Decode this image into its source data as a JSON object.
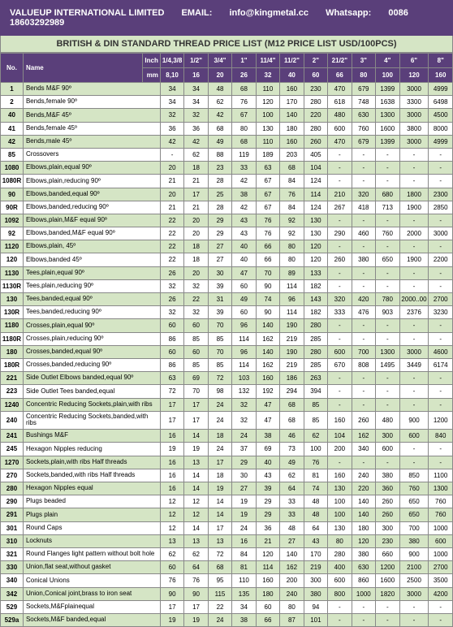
{
  "company": "VALUEUP INTERNATIONAL LIMITED",
  "email_label": "EMAIL:",
  "email": "info@kingmetal.cc",
  "whatsapp_label": "Whatsapp:",
  "whatsapp": "0086 18603292989",
  "title": "BRITISH & DIN STANDARD THREAD PRICE LIST (M12 PRICE LIST USD/100PCS)",
  "head_no": "No.",
  "head_name": "Name",
  "unit_top": "Inch",
  "unit_bottom": "mm",
  "sizes_inch": [
    "1/4,3/8",
    "1/2\"",
    "3/4\"",
    "1\"",
    "11/4\"",
    "11/2\"",
    "2\"",
    "21/2\"",
    "3\"",
    "4\"",
    "6\"",
    "8\""
  ],
  "sizes_mm": [
    "8,10",
    "16",
    "20",
    "26",
    "32",
    "40",
    "60",
    "66",
    "80",
    "100",
    "120",
    "160"
  ],
  "rows": [
    {
      "no": "1",
      "name": "Bends M&F 90º",
      "v": [
        "34",
        "34",
        "48",
        "68",
        "110",
        "160",
        "230",
        "470",
        "679",
        "1399",
        "3000",
        "4999"
      ]
    },
    {
      "no": "2",
      "name": "Bends,female 90º",
      "v": [
        "34",
        "34",
        "62",
        "76",
        "120",
        "170",
        "280",
        "618",
        "748",
        "1638",
        "3300",
        "6498"
      ]
    },
    {
      "no": "40",
      "name": "Bends,M&F 45º",
      "v": [
        "32",
        "32",
        "42",
        "67",
        "100",
        "140",
        "220",
        "480",
        "630",
        "1300",
        "3000",
        "4500"
      ]
    },
    {
      "no": "41",
      "name": "Bends,female 45º",
      "v": [
        "36",
        "36",
        "68",
        "80",
        "130",
        "180",
        "280",
        "600",
        "760",
        "1600",
        "3800",
        "8000"
      ]
    },
    {
      "no": "42",
      "name": "Bends,male 45º",
      "v": [
        "42",
        "42",
        "49",
        "68",
        "110",
        "160",
        "260",
        "470",
        "679",
        "1399",
        "3000",
        "4999"
      ]
    },
    {
      "no": "85",
      "name": "Crossovers",
      "v": [
        "-",
        "62",
        "88",
        "119",
        "189",
        "203",
        "405",
        "-",
        "-",
        "-",
        "-",
        "-"
      ]
    },
    {
      "no": "1080",
      "name": "Elbows,plain,equal 90º",
      "v": [
        "20",
        "18",
        "23",
        "33",
        "63",
        "68",
        "104",
        "-",
        "-",
        "-",
        "-",
        "-"
      ]
    },
    {
      "no": "1080R",
      "name": "Elbows,plain,reducing 90º",
      "v": [
        "21",
        "21",
        "28",
        "42",
        "67",
        "84",
        "124",
        "-",
        "-",
        "-",
        "-",
        "-"
      ]
    },
    {
      "no": "90",
      "name": "Elbows,banded,equal 90º",
      "v": [
        "20",
        "17",
        "25",
        "38",
        "67",
        "76",
        "114",
        "210",
        "320",
        "680",
        "1800",
        "2300"
      ]
    },
    {
      "no": "90R",
      "name": "Elbows,banded,reducing 90º",
      "v": [
        "21",
        "21",
        "28",
        "42",
        "67",
        "84",
        "124",
        "267",
        "418",
        "713",
        "1900",
        "2850"
      ]
    },
    {
      "no": "1092",
      "name": "Elbows,plain,M&F equal 90º",
      "v": [
        "22",
        "20",
        "29",
        "43",
        "76",
        "92",
        "130",
        "-",
        "-",
        "-",
        "-",
        "-"
      ]
    },
    {
      "no": "92",
      "name": "Elbows,banded,M&F equal 90º",
      "v": [
        "22",
        "20",
        "29",
        "43",
        "76",
        "92",
        "130",
        "290",
        "460",
        "760",
        "2000",
        "3000"
      ]
    },
    {
      "no": "1120",
      "name": "Elbows,plain, 45º",
      "v": [
        "22",
        "18",
        "27",
        "40",
        "66",
        "80",
        "120",
        "-",
        "-",
        "-",
        "-",
        "-"
      ]
    },
    {
      "no": "120",
      "name": "Elbows,banded 45º",
      "v": [
        "22",
        "18",
        "27",
        "40",
        "66",
        "80",
        "120",
        "260",
        "380",
        "650",
        "1900",
        "2200"
      ]
    },
    {
      "no": "1130",
      "name": "Tees,plain,equal 90º",
      "v": [
        "26",
        "20",
        "30",
        "47",
        "70",
        "89",
        "133",
        "-",
        "-",
        "-",
        "-",
        "-"
      ]
    },
    {
      "no": "1130R",
      "name": "Tees,plain,reducing 90º",
      "v": [
        "32",
        "32",
        "39",
        "60",
        "90",
        "114",
        "182",
        "-",
        "-",
        "-",
        "-",
        "-"
      ]
    },
    {
      "no": "130",
      "name": "Tees,banded,equal 90º",
      "v": [
        "26",
        "22",
        "31",
        "49",
        "74",
        "96",
        "143",
        "320",
        "420",
        "780",
        "2000..00",
        "2700"
      ]
    },
    {
      "no": "130R",
      "name": "Tees,banded,reducing 90º",
      "v": [
        "32",
        "32",
        "39",
        "60",
        "90",
        "114",
        "182",
        "333",
        "476",
        "903",
        "2376",
        "3230"
      ]
    },
    {
      "no": "1180",
      "name": "Crosses,plain,equal 90º",
      "v": [
        "60",
        "60",
        "70",
        "96",
        "140",
        "190",
        "280",
        "-",
        "-",
        "-",
        "-",
        "-"
      ]
    },
    {
      "no": "1180R",
      "name": "Crosses,plain,reducing 90º",
      "v": [
        "86",
        "85",
        "85",
        "114",
        "162",
        "219",
        "285",
        "-",
        "-",
        "-",
        "-",
        "-"
      ]
    },
    {
      "no": "180",
      "name": "Crosses,banded,equal 90º",
      "v": [
        "60",
        "60",
        "70",
        "96",
        "140",
        "190",
        "280",
        "600",
        "700",
        "1300",
        "3000",
        "4600"
      ]
    },
    {
      "no": "180R",
      "name": "Crosses,banded,reducing 90º",
      "v": [
        "86",
        "85",
        "85",
        "114",
        "162",
        "219",
        "285",
        "670",
        "808",
        "1495",
        "3449",
        "6174"
      ]
    },
    {
      "no": "221",
      "name": "Side Outlet Elbows banded,equal 90º",
      "v": [
        "63",
        "69",
        "72",
        "103",
        "160",
        "186",
        "263",
        "-",
        "-",
        "-",
        "-",
        "-"
      ]
    },
    {
      "no": "223",
      "name": "Side Outlet Tees banded,equal",
      "v": [
        "72",
        "70",
        "98",
        "132",
        "192",
        "294",
        "394",
        "-",
        "-",
        "-",
        "-",
        "-"
      ]
    },
    {
      "no": "1240",
      "name": "Concentric Reducing Sockets,plain,with ribs",
      "v": [
        "17",
        "17",
        "24",
        "32",
        "47",
        "68",
        "85",
        "-",
        "-",
        "-",
        "-",
        "-"
      ]
    },
    {
      "no": "240",
      "name": "Concentric Reducing Sockets,banded,with ribs",
      "v": [
        "17",
        "17",
        "24",
        "32",
        "47",
        "68",
        "85",
        "160",
        "260",
        "480",
        "900",
        "1200"
      ]
    },
    {
      "no": "241",
      "name": "Bushings M&F",
      "v": [
        "16",
        "14",
        "18",
        "24",
        "38",
        "46",
        "62",
        "104",
        "162",
        "300",
        "600",
        "840"
      ]
    },
    {
      "no": "245",
      "name": "Hexagon Nipples reducing",
      "v": [
        "19",
        "19",
        "24",
        "37",
        "69",
        "73",
        "100",
        "200",
        "340",
        "600",
        "-",
        "-"
      ]
    },
    {
      "no": "1270",
      "name": "Sockets,plain,with ribs Half threads",
      "v": [
        "16",
        "13",
        "17",
        "29",
        "40",
        "49",
        "76",
        "-",
        "-",
        "-",
        "-",
        "-"
      ]
    },
    {
      "no": "270",
      "name": "Sockets,banded,with ribs Half threads",
      "v": [
        "16",
        "14",
        "18",
        "30",
        "43",
        "62",
        "81",
        "160",
        "240",
        "380",
        "850",
        "1100"
      ]
    },
    {
      "no": "280",
      "name": "Hexagon Nipples equal",
      "v": [
        "16",
        "14",
        "19",
        "27",
        "39",
        "64",
        "74",
        "130",
        "220",
        "360",
        "760",
        "1300"
      ]
    },
    {
      "no": "290",
      "name": "Plugs beaded",
      "v": [
        "12",
        "12",
        "14",
        "19",
        "29",
        "33",
        "48",
        "100",
        "140",
        "260",
        "650",
        "760"
      ]
    },
    {
      "no": "291",
      "name": "Plugs plain",
      "v": [
        "12",
        "12",
        "14",
        "19",
        "29",
        "33",
        "48",
        "100",
        "140",
        "260",
        "650",
        "760"
      ]
    },
    {
      "no": "301",
      "name": "Round Caps",
      "v": [
        "12",
        "14",
        "17",
        "24",
        "36",
        "48",
        "64",
        "130",
        "180",
        "300",
        "700",
        "1000"
      ]
    },
    {
      "no": "310",
      "name": "Locknuts",
      "v": [
        "13",
        "13",
        "13",
        "16",
        "21",
        "27",
        "43",
        "80",
        "120",
        "230",
        "380",
        "600"
      ]
    },
    {
      "no": "321",
      "name": "Round Flanges light pattern without bolt hole",
      "v": [
        "62",
        "62",
        "72",
        "84",
        "120",
        "140",
        "170",
        "280",
        "380",
        "660",
        "900",
        "1000"
      ]
    },
    {
      "no": "330",
      "name": "Union,flat seat,without gasket",
      "v": [
        "60",
        "64",
        "68",
        "81",
        "114",
        "162",
        "219",
        "400",
        "630",
        "1200",
        "2100",
        "2700"
      ]
    },
    {
      "no": "340",
      "name": "Conical Unions",
      "v": [
        "76",
        "76",
        "95",
        "110",
        "160",
        "200",
        "300",
        "600",
        "860",
        "1600",
        "2500",
        "3500"
      ]
    },
    {
      "no": "342",
      "name": "Union,Conical joint,brass to iron seat",
      "v": [
        "90",
        "90",
        "115",
        "135",
        "180",
        "240",
        "380",
        "800",
        "1000",
        "1820",
        "3000",
        "4200"
      ]
    },
    {
      "no": "529",
      "name": "Sockets,M&Fplainequal",
      "v": [
        "17",
        "17",
        "22",
        "34",
        "60",
        "80",
        "94",
        "-",
        "-",
        "-",
        "-",
        "-"
      ]
    },
    {
      "no": "529a",
      "name": "Sockets,M&F banded,equal",
      "v": [
        "19",
        "19",
        "24",
        "38",
        "66",
        "87",
        "101",
        "-",
        "-",
        "-",
        "-",
        "-"
      ]
    }
  ]
}
